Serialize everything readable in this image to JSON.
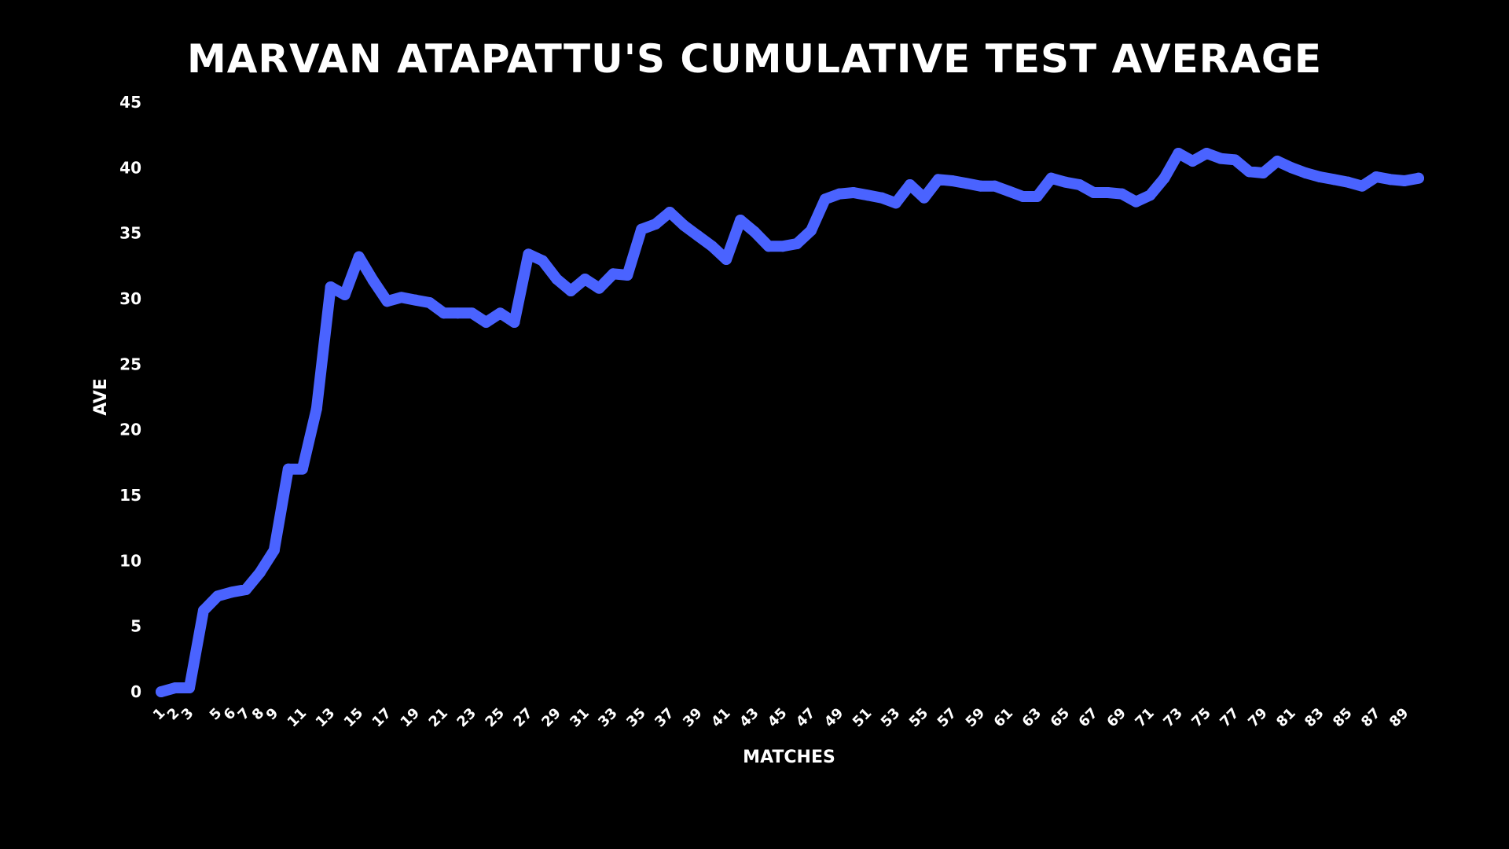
{
  "chart_data": {
    "type": "line",
    "title": "MARVAN ATAPATTU'S CUMULATIVE TEST AVERAGE",
    "xlabel": "MATCHES",
    "ylabel": "AVE",
    "ylim": [
      0,
      45
    ],
    "y_ticks": [
      0,
      5,
      10,
      15,
      20,
      25,
      30,
      35,
      40,
      45
    ],
    "x_tick_labels": [
      "1",
      "2",
      "3",
      "5",
      "6",
      "7",
      "8",
      "9",
      "11",
      "13",
      "15",
      "17",
      "19",
      "21",
      "23",
      "25",
      "27",
      "29",
      "31",
      "33",
      "35",
      "37",
      "39",
      "41",
      "43",
      "45",
      "47",
      "49",
      "51",
      "53",
      "55",
      "57",
      "59",
      "61",
      "63",
      "65",
      "67",
      "69",
      "71",
      "73",
      "75",
      "77",
      "79",
      "81",
      "83",
      "85",
      "87",
      "89"
    ],
    "grid": false,
    "legend": "none",
    "line_color": "#4a63ff",
    "series": [
      {
        "x": [
          1,
          2,
          3,
          4,
          5,
          6,
          7,
          8,
          9,
          10,
          11,
          12,
          13,
          14,
          15,
          16,
          17,
          18,
          19,
          20,
          21,
          22,
          23,
          24,
          25,
          26,
          27,
          28,
          29,
          30,
          31,
          32,
          33,
          34,
          35,
          36,
          37,
          38,
          39,
          40,
          41,
          42,
          43,
          44,
          45,
          46,
          47,
          48,
          49,
          50,
          51,
          52,
          53,
          54,
          55,
          56,
          57,
          58,
          59,
          60,
          61,
          62,
          63,
          64,
          65,
          66,
          67,
          68,
          69,
          70,
          71,
          72,
          73,
          74,
          75,
          76,
          77,
          78,
          79,
          80,
          81,
          82,
          83,
          84,
          85,
          86,
          87,
          88,
          89,
          90
        ],
        "values": [
          0,
          0.3,
          0.3,
          6.2,
          7.3,
          7.6,
          7.8,
          9.1,
          10.8,
          17,
          17,
          21.6,
          30.9,
          30.3,
          33.2,
          31.4,
          29.8,
          30.1,
          29.9,
          29.7,
          28.9,
          28.9,
          28.9,
          28.2,
          28.9,
          28.2,
          33.4,
          32.9,
          31.5,
          30.6,
          31.5,
          30.8,
          31.9,
          31.8,
          35.3,
          35.7,
          36.6,
          35.6,
          34.8,
          34,
          33,
          36,
          35.1,
          34,
          34,
          34.2,
          35.2,
          37.6,
          38,
          38.1,
          37.9,
          37.7,
          37.3,
          38.7,
          37.7,
          39.1,
          39,
          38.8,
          38.6,
          38.6,
          38.2,
          37.8,
          37.8,
          39.2,
          38.9,
          38.7,
          38.1,
          38.1,
          38,
          37.4,
          37.9,
          39.2,
          41.1,
          40.5,
          41.1,
          40.7,
          40.6,
          39.7,
          39.6,
          40.5,
          40,
          39.6,
          39.3,
          39.1,
          38.9,
          38.6,
          39.3,
          39.1,
          39,
          39.2
        ]
      }
    ]
  }
}
